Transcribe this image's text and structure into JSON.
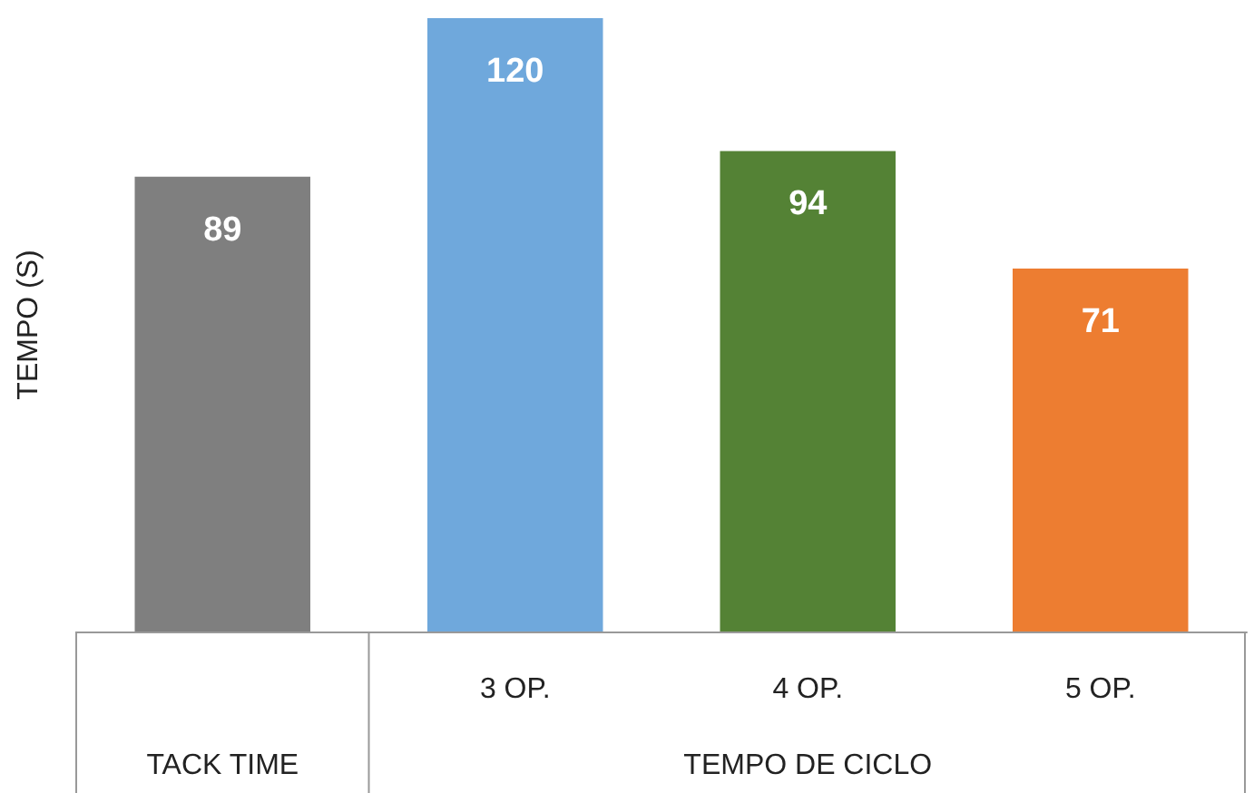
{
  "chart_data": {
    "type": "bar",
    "ylabel": "TEMPO (S)",
    "categories": [
      null,
      "3 OP.",
      "4 OP.",
      "5 OP."
    ],
    "values": [
      89,
      120,
      94,
      71
    ],
    "colors": [
      "#7f7f7f",
      "#6fa8dc",
      "#548235",
      "#ed7d31"
    ],
    "data_labels": true,
    "tick_labels": "x",
    "grid": false,
    "annotations": [
      "TACK TIME",
      "TEMPO DE CICLO"
    ]
  }
}
